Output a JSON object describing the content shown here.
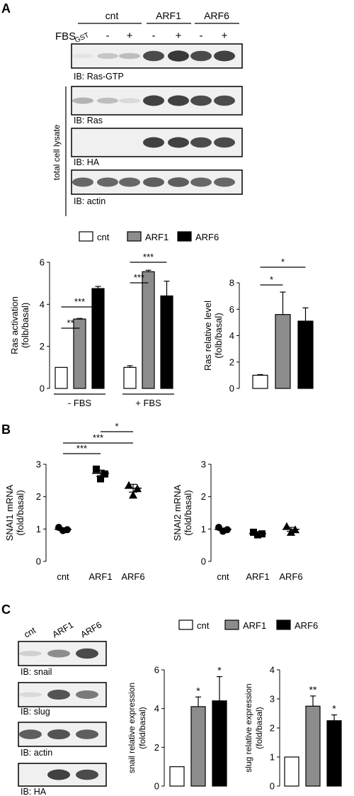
{
  "panels": {
    "A": {
      "label": "A",
      "header": {
        "groups": [
          "cnt",
          "ARF1",
          "ARF6"
        ],
        "fbs_label": "FBS",
        "lane_labels": [
          "GST",
          "-",
          "+",
          "-",
          "+",
          "-",
          "+"
        ]
      },
      "blots": [
        {
          "label": "IB: Ras-GTP",
          "band_intensities": [
            0.05,
            0.2,
            0.25,
            0.85,
            0.95,
            0.85,
            0.9
          ]
        },
        {
          "label": "IB: Ras",
          "band_intensities": [
            0.3,
            0.25,
            0.1,
            0.9,
            0.9,
            0.85,
            0.85
          ]
        },
        {
          "label": "IB: HA",
          "band_intensities": [
            0,
            0,
            0,
            0.9,
            0.9,
            0.85,
            0.85
          ]
        },
        {
          "label": "IB: actin",
          "band_intensities": [
            0.7,
            0.7,
            0.7,
            0.75,
            0.75,
            0.7,
            0.7
          ]
        }
      ],
      "side_label": "total cell lysate",
      "legend": [
        {
          "name": "cnt",
          "color": "#ffffff"
        },
        {
          "name": "ARF1",
          "color": "#8c8c8c"
        },
        {
          "name": "ARF6",
          "color": "#000000"
        }
      ]
    },
    "B": {
      "label": "B"
    },
    "C": {
      "label": "C",
      "lane_labels": [
        "cnt",
        "ARF1",
        "ARF6"
      ],
      "blots": [
        {
          "label": "IB: snail",
          "band_intensities": [
            0.15,
            0.5,
            0.85
          ]
        },
        {
          "label": "IB: slug",
          "band_intensities": [
            0.1,
            0.8,
            0.6
          ]
        },
        {
          "label": "IB: actin",
          "band_intensities": [
            0.75,
            0.8,
            0.75
          ]
        },
        {
          "label": "IB: HA",
          "band_intensities": [
            0,
            0.9,
            0.85
          ]
        }
      ],
      "legend": [
        {
          "name": "cnt",
          "color": "#ffffff"
        },
        {
          "name": "ARF1",
          "color": "#8c8c8c"
        },
        {
          "name": "ARF6",
          "color": "#000000"
        }
      ]
    }
  },
  "chart_data": [
    {
      "id": "ras-activation",
      "type": "bar",
      "ylabel": [
        "Ras activation",
        "(folb/basal)"
      ],
      "ylim": [
        0,
        6
      ],
      "yticks": [
        0,
        2,
        4,
        6
      ],
      "groups": [
        "- FBS",
        "+ FBS"
      ],
      "series": [
        {
          "name": "cnt",
          "color": "#ffffff",
          "values": [
            1.0,
            1.0
          ],
          "errors": [
            0,
            0.08
          ]
        },
        {
          "name": "ARF1",
          "color": "#8c8c8c",
          "values": [
            3.3,
            5.55
          ],
          "errors": [
            0.03,
            0.07
          ]
        },
        {
          "name": "ARF6",
          "color": "#000000",
          "values": [
            4.75,
            4.4
          ],
          "errors": [
            0.1,
            0.7
          ]
        }
      ],
      "significance": [
        {
          "label": "**",
          "group": 0,
          "from": 0,
          "to": 1,
          "level": 0
        },
        {
          "label": "***",
          "group": 0,
          "from": 0,
          "to": 2,
          "level": 1
        },
        {
          "label": "***",
          "group": 1,
          "from": 0,
          "to": 1,
          "level": 0
        },
        {
          "label": "***",
          "group": 1,
          "from": 0,
          "to": 2,
          "level": 1
        }
      ]
    },
    {
      "id": "ras-relative-level",
      "type": "bar",
      "ylabel": [
        "Ras relative level",
        "(folb/basal)"
      ],
      "ylim": [
        0,
        8
      ],
      "yticks": [
        0,
        2,
        4,
        6,
        8
      ],
      "categories": [
        "cnt",
        "ARF1",
        "ARF6"
      ],
      "colors": [
        "#ffffff",
        "#8c8c8c",
        "#000000"
      ],
      "values": [
        1.0,
        5.6,
        5.1
      ],
      "errors": [
        0.05,
        1.7,
        1.0
      ],
      "significance": [
        {
          "label": "*",
          "from": 0,
          "to": 1,
          "level": 0
        },
        {
          "label": "*",
          "from": 0,
          "to": 2,
          "level": 1
        }
      ]
    },
    {
      "id": "snai1-mrna",
      "type": "scatter",
      "ylabel": [
        "SNAI1 mRNA",
        "(fold/basal)"
      ],
      "ylim": [
        0,
        3
      ],
      "yticks": [
        0,
        1,
        2,
        3
      ],
      "categories": [
        "cnt",
        "ARF1",
        "ARF6"
      ],
      "markers": [
        "circle",
        "square",
        "triangle"
      ],
      "points": [
        [
          1.05,
          0.98,
          0.95
        ],
        [
          2.85,
          2.7,
          2.55
        ],
        [
          2.35,
          2.25,
          2.05
        ]
      ],
      "means": [
        0.99,
        2.72,
        2.26
      ],
      "errors": [
        0.04,
        0.1,
        0.12
      ],
      "significance": [
        {
          "label": "***",
          "from": 0,
          "to": 1,
          "level": 0
        },
        {
          "label": "***",
          "from": 0,
          "to": 2,
          "level": 1
        },
        {
          "label": "*",
          "from": 1,
          "to": 2,
          "level": 2
        }
      ]
    },
    {
      "id": "snai2-mrna",
      "type": "scatter",
      "ylabel": [
        "SNAI2 mRNA",
        "(fold/basal)"
      ],
      "ylim": [
        0,
        3
      ],
      "yticks": [
        0,
        1,
        2,
        3
      ],
      "categories": [
        "cnt",
        "ARF1",
        "ARF6"
      ],
      "markers": [
        "circle",
        "square",
        "triangle"
      ],
      "points": [
        [
          1.05,
          0.98,
          0.93
        ],
        [
          0.9,
          0.85,
          0.82
        ],
        [
          1.08,
          0.98,
          0.9
        ]
      ],
      "means": [
        0.99,
        0.86,
        0.99
      ],
      "errors": [
        0.04,
        0.03,
        0.06
      ],
      "significance": []
    },
    {
      "id": "snail-expression",
      "type": "bar",
      "ylabel": [
        "snail relative expression",
        "(fold/basal)"
      ],
      "ylim": [
        0,
        6
      ],
      "yticks": [
        0,
        2,
        4,
        6
      ],
      "categories": [
        "cnt",
        "ARF1",
        "ARF6"
      ],
      "colors": [
        "#ffffff",
        "#8c8c8c",
        "#000000"
      ],
      "values": [
        1.0,
        4.1,
        4.4
      ],
      "errors": [
        0,
        0.5,
        1.25
      ],
      "significance": [
        {
          "label": "",
          "bar": 0
        },
        {
          "label": "*",
          "bar": 1
        },
        {
          "label": "*",
          "bar": 2
        }
      ]
    },
    {
      "id": "slug-expression",
      "type": "bar",
      "ylabel": [
        "slug relative expression",
        "(fold/basal)"
      ],
      "ylim": [
        0,
        4
      ],
      "yticks": [
        0,
        1,
        2,
        3,
        4
      ],
      "categories": [
        "cnt",
        "ARF1",
        "ARF6"
      ],
      "colors": [
        "#ffffff",
        "#8c8c8c",
        "#000000"
      ],
      "values": [
        1.0,
        2.75,
        2.25
      ],
      "errors": [
        0,
        0.35,
        0.2
      ],
      "significance": [
        {
          "label": "",
          "bar": 0
        },
        {
          "label": "**",
          "bar": 1
        },
        {
          "label": "*",
          "bar": 2
        }
      ]
    }
  ]
}
